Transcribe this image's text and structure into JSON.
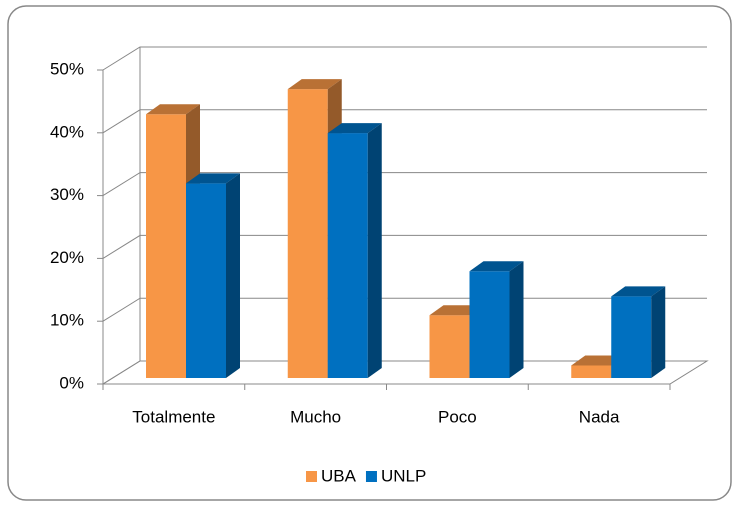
{
  "chart_data": {
    "type": "bar3d",
    "categories": [
      "Totalmente",
      "Mucho",
      "Poco",
      "Nada"
    ],
    "series": [
      {
        "name": "UBA",
        "color": "#f79646",
        "values": [
          42,
          46,
          10,
          2
        ]
      },
      {
        "name": "UNLP",
        "color": "#0070c0",
        "values": [
          31,
          39,
          17,
          13
        ]
      }
    ],
    "ylim": [
      0,
      50
    ],
    "yticks": [
      {
        "value": 0,
        "label": "0%"
      },
      {
        "value": 10,
        "label": "10%"
      },
      {
        "value": 20,
        "label": "20%"
      },
      {
        "value": 30,
        "label": "30%"
      },
      {
        "value": 40,
        "label": "40%"
      },
      {
        "value": 50,
        "label": "50%"
      }
    ],
    "grid": true,
    "legend": "bottom"
  }
}
